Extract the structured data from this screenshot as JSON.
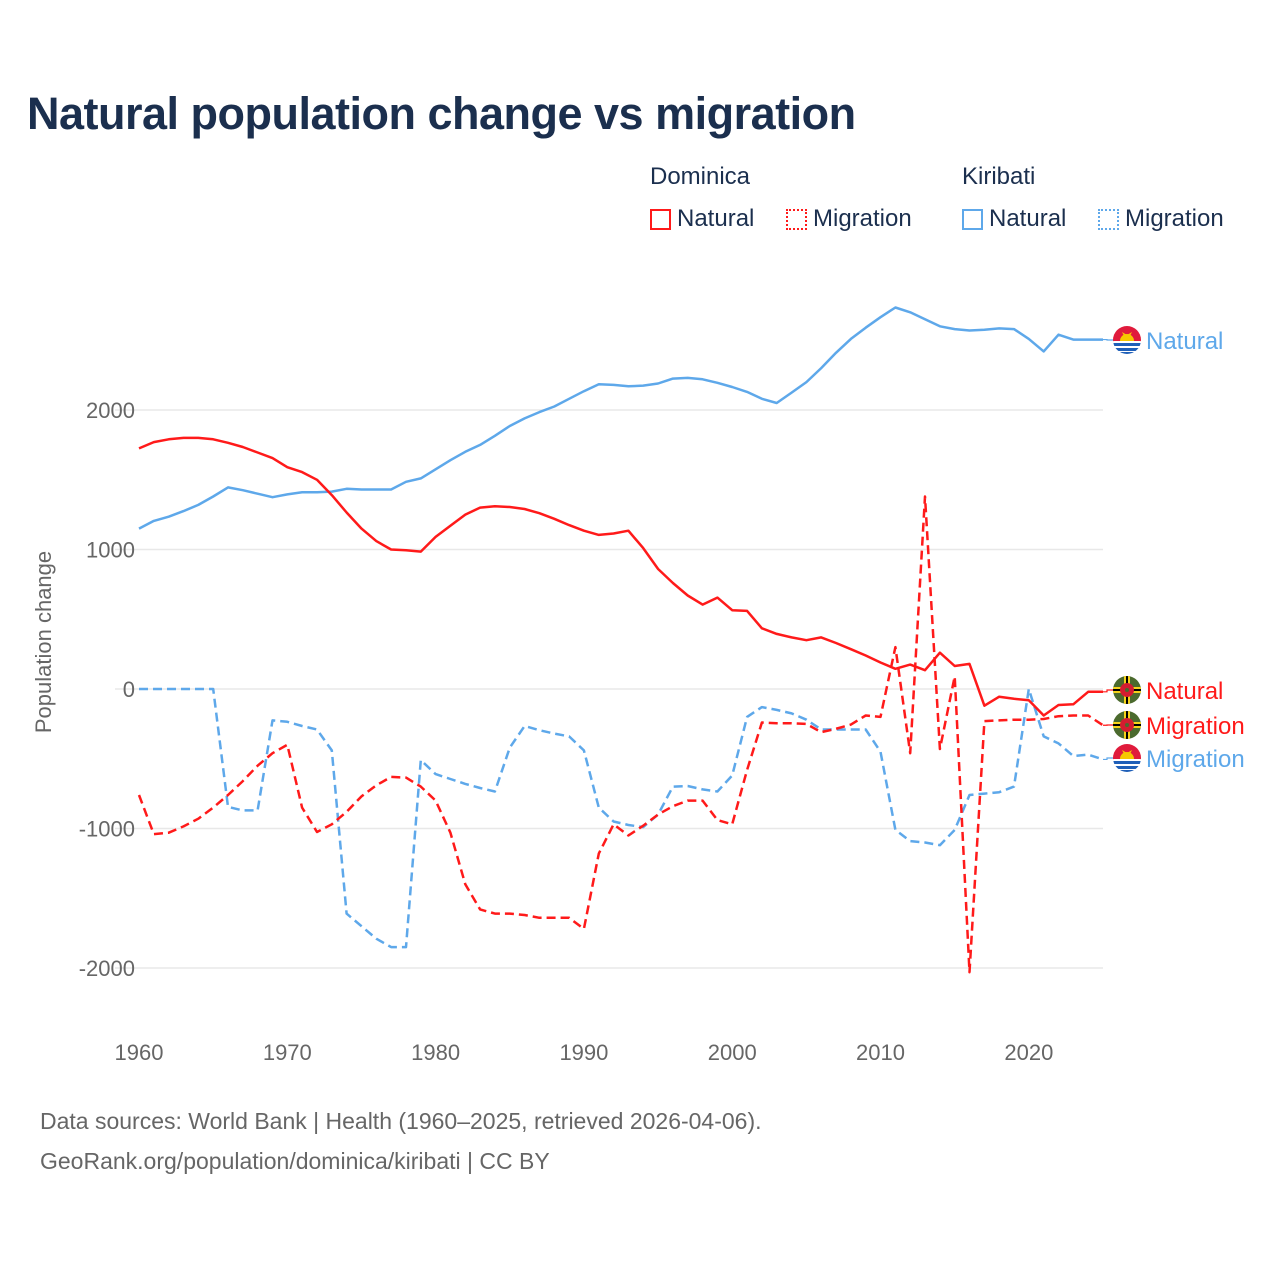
{
  "title": "Natural population change vs migration",
  "legend": {
    "groups": [
      {
        "name": "Dominica",
        "items": [
          {
            "label": "Natural",
            "style": "solid"
          },
          {
            "label": "Migration",
            "style": "dotted"
          }
        ],
        "color": "#ff1a1a"
      },
      {
        "name": "Kiribati",
        "items": [
          {
            "label": "Natural",
            "style": "solid"
          },
          {
            "label": "Migration",
            "style": "dotted"
          }
        ],
        "color": "#5ea8ea"
      }
    ]
  },
  "footer": {
    "line1": "Data sources: World Bank | Health (1960–2025, retrieved 2026-04-06).",
    "line2": "GeoRank.org/population/dominica/kiribati | CC BY"
  },
  "chart_data": {
    "type": "line",
    "title": "Natural population change vs migration",
    "xlabel": "",
    "ylabel": "Population change",
    "xlim": [
      1960,
      2025
    ],
    "ylim": [
      -2200,
      2900
    ],
    "xticks": [
      1960,
      1970,
      1980,
      1990,
      2000,
      2010,
      2020
    ],
    "yticks": [
      -2000,
      -1000,
      0,
      1000,
      2000
    ],
    "grid": true,
    "legend_position": "top-right",
    "x_start": 1960,
    "series": [
      {
        "name": "Dominica Natural",
        "end_label": "Natural",
        "country": "Dominica",
        "color": "#ff1a1a",
        "dash": false,
        "values": [
          1725,
          1770,
          1790,
          1800,
          1800,
          1790,
          1765,
          1735,
          1695,
          1655,
          1590,
          1555,
          1500,
          1390,
          1265,
          1150,
          1060,
          1000,
          995,
          985,
          1090,
          1170,
          1250,
          1300,
          1310,
          1305,
          1290,
          1260,
          1220,
          1175,
          1135,
          1105,
          1115,
          1135,
          1010,
          860,
          760,
          670,
          605,
          655,
          565,
          560,
          435,
          395,
          370,
          350,
          370,
          330,
          285,
          240,
          190,
          145,
          175,
          135,
          260,
          165,
          180,
          -120,
          -55,
          -70,
          -80,
          -190,
          -115,
          -110,
          -20,
          -20
        ]
      },
      {
        "name": "Dominica Migration",
        "end_label": "Migration",
        "country": "Dominica",
        "color": "#ff1a1a",
        "dash": true,
        "values": [
          -760,
          -1040,
          -1030,
          -985,
          -930,
          -850,
          -760,
          -660,
          -550,
          -460,
          -400,
          -850,
          -1025,
          -970,
          -880,
          -770,
          -690,
          -630,
          -635,
          -700,
          -800,
          -1030,
          -1400,
          -1580,
          -1610,
          -1610,
          -1620,
          -1640,
          -1640,
          -1640,
          -1720,
          -1180,
          -970,
          -1050,
          -980,
          -900,
          -840,
          -800,
          -800,
          -940,
          -970,
          -580,
          -240,
          -245,
          -245,
          -250,
          -310,
          -285,
          -255,
          -190,
          -200,
          300,
          -460,
          1380,
          -430,
          90,
          -2030,
          -230,
          -225,
          -220,
          -220,
          -215,
          -195,
          -190,
          -190,
          -260
        ]
      },
      {
        "name": "Kiribati Natural",
        "end_label": "Natural",
        "country": "Kiribati",
        "color": "#5ea8ea",
        "dash": false,
        "values": [
          1150,
          1205,
          1235,
          1275,
          1320,
          1380,
          1445,
          1425,
          1400,
          1375,
          1395,
          1410,
          1410,
          1415,
          1435,
          1430,
          1430,
          1430,
          1485,
          1510,
          1575,
          1640,
          1700,
          1750,
          1815,
          1885,
          1940,
          1985,
          2025,
          2080,
          2135,
          2185,
          2180,
          2170,
          2175,
          2190,
          2225,
          2230,
          2220,
          2195,
          2165,
          2130,
          2080,
          2050,
          2125,
          2200,
          2300,
          2410,
          2510,
          2590,
          2665,
          2735,
          2700,
          2650,
          2600,
          2580,
          2570,
          2575,
          2585,
          2580,
          2510,
          2420,
          2540,
          2505,
          2505,
          2505
        ]
      },
      {
        "name": "Kiribati Migration",
        "end_label": "Migration",
        "country": "Kiribati",
        "color": "#5ea8ea",
        "dash": true,
        "values": [
          0,
          0,
          0,
          0,
          0,
          0,
          -845,
          -870,
          -870,
          -225,
          -235,
          -265,
          -290,
          -440,
          -1610,
          -1700,
          -1790,
          -1850,
          -1850,
          -510,
          -610,
          -645,
          -680,
          -710,
          -735,
          -420,
          -265,
          -295,
          -320,
          -340,
          -440,
          -850,
          -950,
          -975,
          -990,
          -900,
          -700,
          -695,
          -720,
          -735,
          -620,
          -200,
          -130,
          -150,
          -175,
          -220,
          -290,
          -290,
          -290,
          -290,
          -450,
          -1010,
          -1090,
          -1100,
          -1120,
          -1010,
          -760,
          -750,
          -740,
          -700,
          0,
          -340,
          -390,
          -480,
          -470,
          -505
        ]
      }
    ]
  }
}
